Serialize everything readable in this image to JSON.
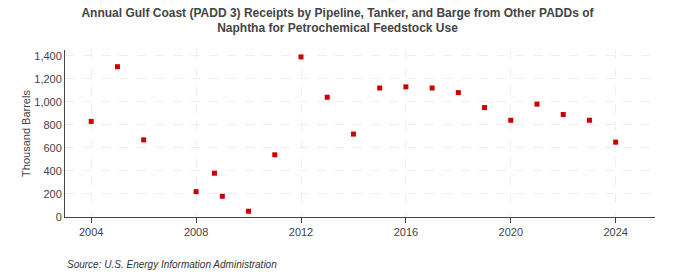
{
  "chart_data": {
    "type": "scatter",
    "title": "Annual Gulf Coast (PADD 3) Receipts by Pipeline, Tanker, and Barge from Other PADDs of\nNaphtha for Petrochemical Feedstock Use",
    "ylabel": "Thousand Barrels",
    "annotations": [
      "Source: U.S. Energy Information Administration"
    ],
    "x": [
      2004,
      2005,
      2006,
      2008,
      2008.7,
      2009,
      2010,
      2011,
      2012,
      2013,
      2014,
      2015,
      2016,
      2017,
      2018,
      2019,
      2020,
      2021,
      2022,
      2023,
      2024
    ],
    "values": [
      830,
      1305,
      670,
      220,
      380,
      180,
      50,
      540,
      1390,
      1040,
      720,
      1120,
      1130,
      1120,
      1080,
      950,
      840,
      980,
      890,
      840,
      650
    ],
    "color": "#cc0000",
    "marker": "square",
    "xlim": [
      2003.0,
      2025.5
    ],
    "xticks": [
      2004,
      2008,
      2012,
      2016,
      2020,
      2024
    ],
    "ylim": [
      0,
      1450
    ],
    "yticks": [
      0,
      200,
      400,
      600,
      800,
      {
        "value": 1000,
        "label": "1,000"
      },
      {
        "value": 1200,
        "label": "1,200"
      },
      {
        "value": 1400,
        "label": "1,400"
      }
    ],
    "grid": true
  }
}
